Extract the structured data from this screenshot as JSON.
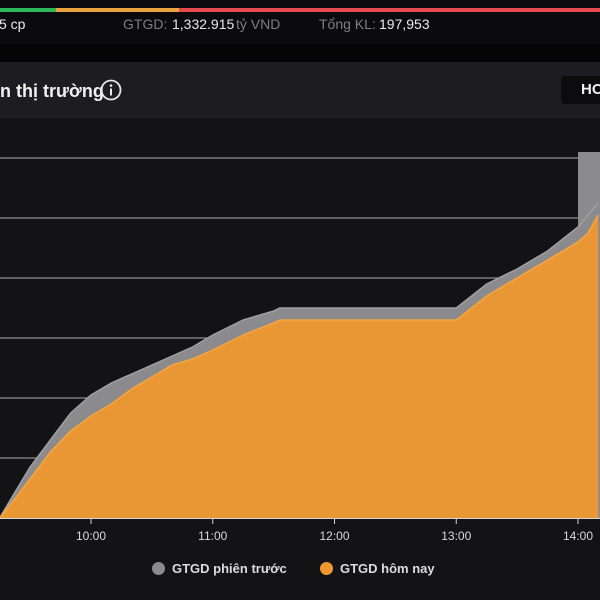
{
  "stats": {
    "shares_fragment": "5 cp",
    "value_label": "GTGD:",
    "value": "1,332.915",
    "value_unit": "tỷ VND",
    "volume_label": "Tổng KL:",
    "volume": "197,953"
  },
  "breadth": {
    "advancing_fraction": 0.093,
    "unchanged_fraction": 0.205,
    "declining_fraction": 0.702,
    "colors": {
      "advancing": "#2eb85c",
      "unchanged": "#e8a33d",
      "declining": "#e5484d"
    }
  },
  "header": {
    "title": "n thị trường",
    "exchange_button": "HOSE",
    "info_icon": "info-circle-icon"
  },
  "chart_data": {
    "type": "area",
    "x_ticks": [
      "10:00",
      "11:00",
      "12:00",
      "13:00",
      "14:00"
    ],
    "grid": true,
    "legend_position": "bottom",
    "series": [
      {
        "name": "GTGD phiên trước",
        "color": "#8b8b8e",
        "points": [
          [
            "09:15",
            0
          ],
          [
            "09:22",
            4
          ],
          [
            "09:30",
            8.5
          ],
          [
            "09:40",
            13
          ],
          [
            "09:50",
            17.5
          ],
          [
            "10:00",
            20.5
          ],
          [
            "10:10",
            22.5
          ],
          [
            "10:20",
            24
          ],
          [
            "10:30",
            25.5
          ],
          [
            "10:40",
            27
          ],
          [
            "10:50",
            28.5
          ],
          [
            "11:00",
            30.5
          ],
          [
            "11:15",
            33
          ],
          [
            "11:30",
            34.5
          ],
          [
            "11:33",
            35
          ],
          [
            "12:00",
            35
          ],
          [
            "12:30",
            35
          ],
          [
            "13:00",
            35
          ],
          [
            "13:15",
            39
          ],
          [
            "13:30",
            41.5
          ],
          [
            "13:45",
            44.5
          ],
          [
            "14:00",
            48.5
          ],
          [
            "14:05",
            50.5
          ],
          [
            "14:10",
            52.5
          ]
        ]
      },
      {
        "name": "GTGD hôm nay",
        "color": "#f0982e",
        "points": [
          [
            "09:15",
            0
          ],
          [
            "09:22",
            3
          ],
          [
            "09:30",
            6.5
          ],
          [
            "09:40",
            11
          ],
          [
            "09:50",
            14.5
          ],
          [
            "10:00",
            17
          ],
          [
            "10:10",
            19
          ],
          [
            "10:20",
            21.5
          ],
          [
            "10:30",
            23.5
          ],
          [
            "10:40",
            25.5
          ],
          [
            "10:50",
            26.5
          ],
          [
            "11:00",
            28
          ],
          [
            "11:15",
            30.5
          ],
          [
            "11:30",
            32.5
          ],
          [
            "11:33",
            33
          ],
          [
            "12:00",
            33
          ],
          [
            "12:30",
            33
          ],
          [
            "13:00",
            33
          ],
          [
            "13:15",
            37
          ],
          [
            "13:30",
            40
          ],
          [
            "13:45",
            43
          ],
          [
            "14:00",
            46
          ],
          [
            "14:05",
            47.5
          ],
          [
            "14:10",
            50.5
          ]
        ]
      }
    ],
    "previous_session_total": 61,
    "previous_session_total_from": "14:00"
  }
}
